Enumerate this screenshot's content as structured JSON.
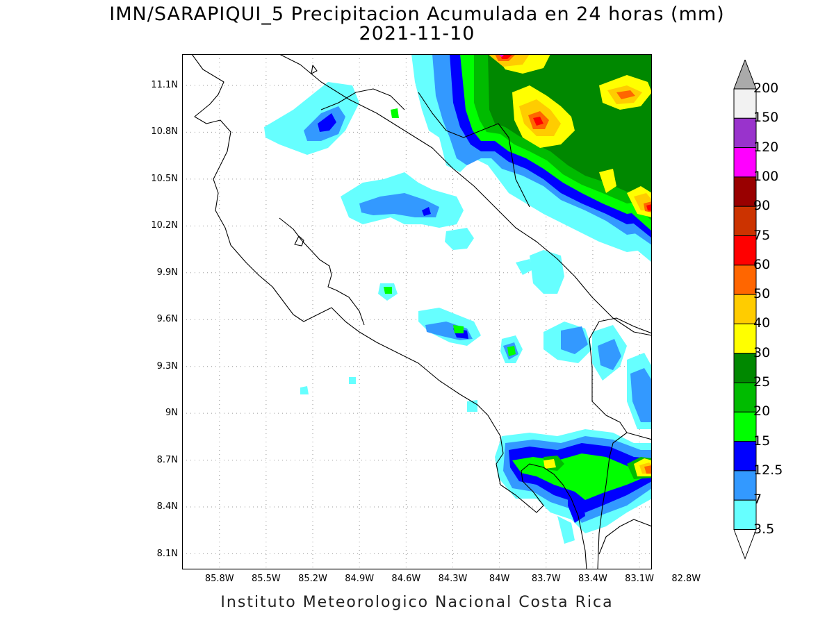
{
  "title": {
    "line1": "IMN/SARAPIQUI_5 Precipitacion Acumulada en 24 horas (mm)",
    "line2": "2021-11-10"
  },
  "footer": "Instituto Meteorologico Nacional Costa Rica",
  "axes": {
    "lat_labels": [
      "11.1N",
      "10.8N",
      "10.5N",
      "10.2N",
      "9.9N",
      "9.6N",
      "9.3N",
      "9N",
      "8.7N",
      "8.4N",
      "8.1N"
    ],
    "lon_labels": [
      "85.8W",
      "85.5W",
      "85.2W",
      "84.9W",
      "84.6W",
      "84.3W",
      "84W",
      "83.7W",
      "83.4W",
      "83.1W",
      "82.8W"
    ],
    "lat_values": [
      11.1,
      10.8,
      10.5,
      10.2,
      9.9,
      9.6,
      9.3,
      9.0,
      8.7,
      8.4,
      8.1
    ],
    "lon_values": [
      -85.8,
      -85.5,
      -85.2,
      -84.9,
      -84.6,
      -84.3,
      -84.0,
      -83.7,
      -83.4,
      -83.1,
      -82.8
    ],
    "lon_range": [
      -86.04,
      -83.02
    ],
    "lat_range": [
      8.0,
      11.3
    ],
    "grid": "dotted"
  },
  "colorbar": {
    "levels": [
      "200",
      "150",
      "120",
      "100",
      "90",
      "75",
      "60",
      "50",
      "40",
      "30",
      "25",
      "20",
      "15",
      "12.5",
      "7",
      "3.5"
    ],
    "colors": [
      "#f2f2f2",
      "#9933cc",
      "#ff00ff",
      "#990000",
      "#cc3300",
      "#ff0000",
      "#ff6600",
      "#ffcc00",
      "#ffff00",
      "#008800",
      "#00bb00",
      "#00ff00",
      "#0000ff",
      "#3399ff",
      "#66ffff"
    ],
    "top_arrow_color": "#aaaaaa",
    "bottom_arrow_color": "#ffffff"
  },
  "precip_colors": {
    "l35": "#66ffff",
    "l7": "#3399ff",
    "l125": "#0000ff",
    "l15": "#00ff00",
    "l20": "#00bb00",
    "l25": "#008800",
    "l30": "#ffff00",
    "l40": "#ffcc00",
    "l50": "#ff6600",
    "l60": "#ff0000",
    "l75": "#cc3300",
    "l90": "#990000",
    "l120": "#ff00ff"
  }
}
